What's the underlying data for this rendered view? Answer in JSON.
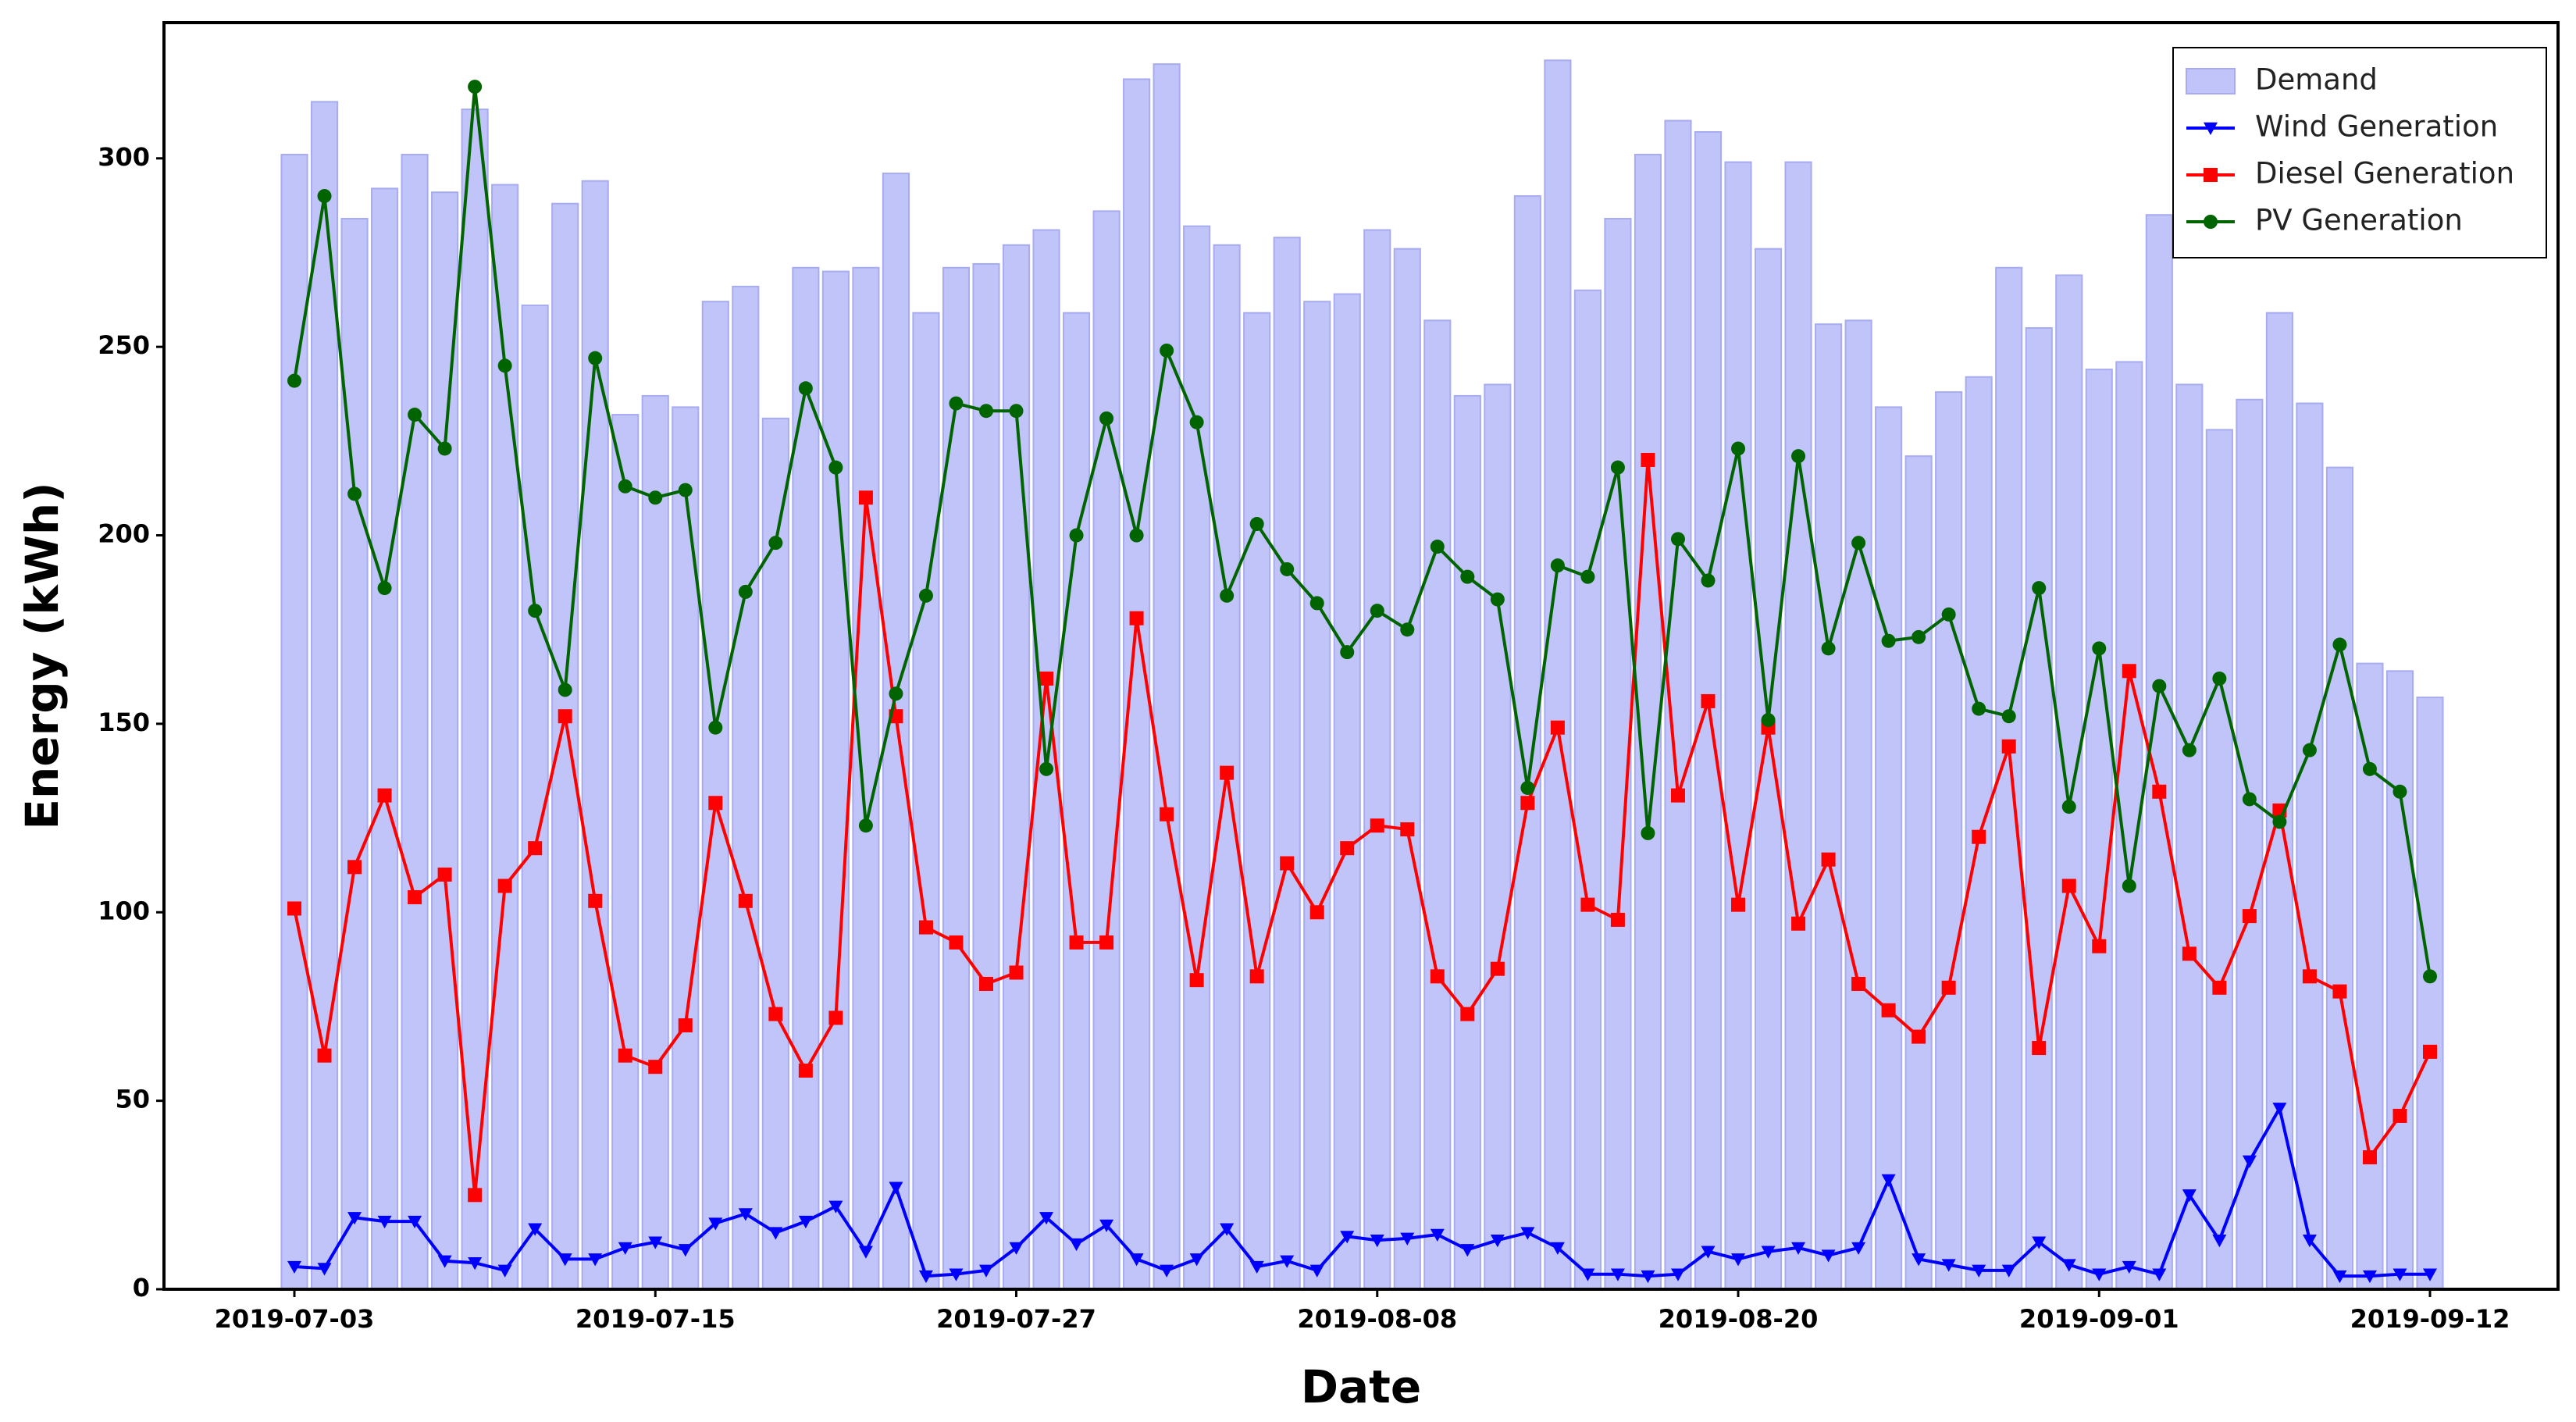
{
  "chart_data": {
    "type": "combo",
    "x_label": "Date",
    "y_label": "Energy (kWh)",
    "x": [
      "2019-07-03",
      "2019-07-04",
      "2019-07-05",
      "2019-07-06",
      "2019-07-07",
      "2019-07-08",
      "2019-07-09",
      "2019-07-10",
      "2019-07-11",
      "2019-07-12",
      "2019-07-13",
      "2019-07-14",
      "2019-07-15",
      "2019-07-16",
      "2019-07-17",
      "2019-07-18",
      "2019-07-19",
      "2019-07-20",
      "2019-07-21",
      "2019-07-22",
      "2019-07-23",
      "2019-07-24",
      "2019-07-25",
      "2019-07-26",
      "2019-07-27",
      "2019-07-28",
      "2019-07-29",
      "2019-07-30",
      "2019-07-31",
      "2019-08-01",
      "2019-08-02",
      "2019-08-03",
      "2019-08-04",
      "2019-08-05",
      "2019-08-06",
      "2019-08-07",
      "2019-08-08",
      "2019-08-09",
      "2019-08-10",
      "2019-08-11",
      "2019-08-12",
      "2019-08-13",
      "2019-08-14",
      "2019-08-15",
      "2019-08-16",
      "2019-08-17",
      "2019-08-18",
      "2019-08-19",
      "2019-08-20",
      "2019-08-21",
      "2019-08-22",
      "2019-08-23",
      "2019-08-24",
      "2019-08-25",
      "2019-08-26",
      "2019-08-27",
      "2019-08-28",
      "2019-08-29",
      "2019-08-30",
      "2019-08-31",
      "2019-09-01",
      "2019-09-02",
      "2019-09-03",
      "2019-09-04",
      "2019-09-05",
      "2019-09-06",
      "2019-09-07",
      "2019-09-08",
      "2019-09-09",
      "2019-09-10",
      "2019-09-11",
      "2019-09-12"
    ],
    "xticks": [
      "2019-07-03",
      "2019-07-15",
      "2019-07-27",
      "2019-08-08",
      "2019-08-20",
      "2019-09-01",
      "2019-09-12"
    ],
    "ylim": [
      0,
      336
    ],
    "yticks": [
      0,
      50,
      100,
      150,
      200,
      250,
      300
    ],
    "legend": "upper right",
    "series": [
      {
        "name": "Demand",
        "type": "bar",
        "color": "#c0c4f8",
        "values": [
          301,
          315,
          284,
          292,
          301,
          291,
          313,
          293,
          261,
          288,
          294,
          232,
          237,
          234,
          262,
          266,
          231,
          271,
          270,
          271,
          296,
          259,
          271,
          272,
          277,
          281,
          259,
          286,
          321,
          325,
          282,
          277,
          259,
          279,
          262,
          264,
          281,
          276,
          257,
          237,
          240,
          290,
          326,
          265,
          284,
          301,
          310,
          307,
          299,
          276,
          299,
          256,
          257,
          234,
          221,
          238,
          242,
          271,
          255,
          269,
          244,
          246,
          285,
          240,
          228,
          236,
          259,
          235,
          218,
          166,
          164,
          157
        ]
      },
      {
        "name": "Wind Generation",
        "type": "line",
        "marker": "triangle-down",
        "color": "#0000ff",
        "values": [
          6,
          5.5,
          19,
          18,
          18,
          7.5,
          7,
          5,
          16,
          8,
          8,
          11,
          12.5,
          10.5,
          17.5,
          20,
          15,
          18,
          22,
          10,
          27,
          3.5,
          4,
          5,
          11,
          19,
          12,
          17,
          8,
          5,
          8,
          16,
          6,
          7.5,
          5,
          14,
          13,
          13.5,
          14.5,
          10.5,
          13,
          15,
          11,
          4,
          4,
          3.5,
          4,
          10,
          8,
          10,
          11,
          9,
          11,
          29,
          8,
          6.5,
          5,
          5,
          12.5,
          6.5,
          4,
          6,
          4,
          25,
          13,
          34,
          48,
          13,
          3.5,
          3.5,
          4,
          4
        ]
      },
      {
        "name": "Diesel Generation",
        "type": "line",
        "marker": "square",
        "color": "#ff0000",
        "values": [
          101,
          62,
          112,
          131,
          104,
          110,
          25,
          107,
          117,
          152,
          103,
          62,
          59,
          70,
          129,
          103,
          73,
          58,
          72,
          210,
          152,
          96,
          92,
          81,
          84,
          162,
          92,
          92,
          178,
          126,
          82,
          137,
          83,
          113,
          100,
          117,
          123,
          122,
          83,
          73,
          85,
          129,
          149,
          102,
          98,
          220,
          131,
          156,
          102,
          149,
          97,
          114,
          81,
          74,
          67,
          80,
          120,
          144,
          64,
          107,
          91,
          164,
          132,
          89,
          80,
          99,
          127,
          83,
          79,
          35,
          46,
          63
        ]
      },
      {
        "name": "PV Generation",
        "type": "line",
        "marker": "circle",
        "color": "#006400",
        "values": [
          241,
          290,
          211,
          186,
          232,
          223,
          319,
          245,
          180,
          159,
          247,
          213,
          210,
          212,
          149,
          185,
          198,
          239,
          218,
          123,
          158,
          184,
          235,
          233,
          233,
          138,
          200,
          231,
          200,
          249,
          230,
          184,
          203,
          191,
          182,
          169,
          180,
          175,
          197,
          189,
          183,
          133,
          192,
          189,
          218,
          121,
          199,
          188,
          223,
          151,
          221,
          170,
          198,
          172,
          173,
          179,
          154,
          152,
          186,
          128,
          170,
          107,
          160,
          143,
          162,
          130,
          124,
          143,
          171,
          138,
          132,
          83
        ]
      }
    ]
  }
}
